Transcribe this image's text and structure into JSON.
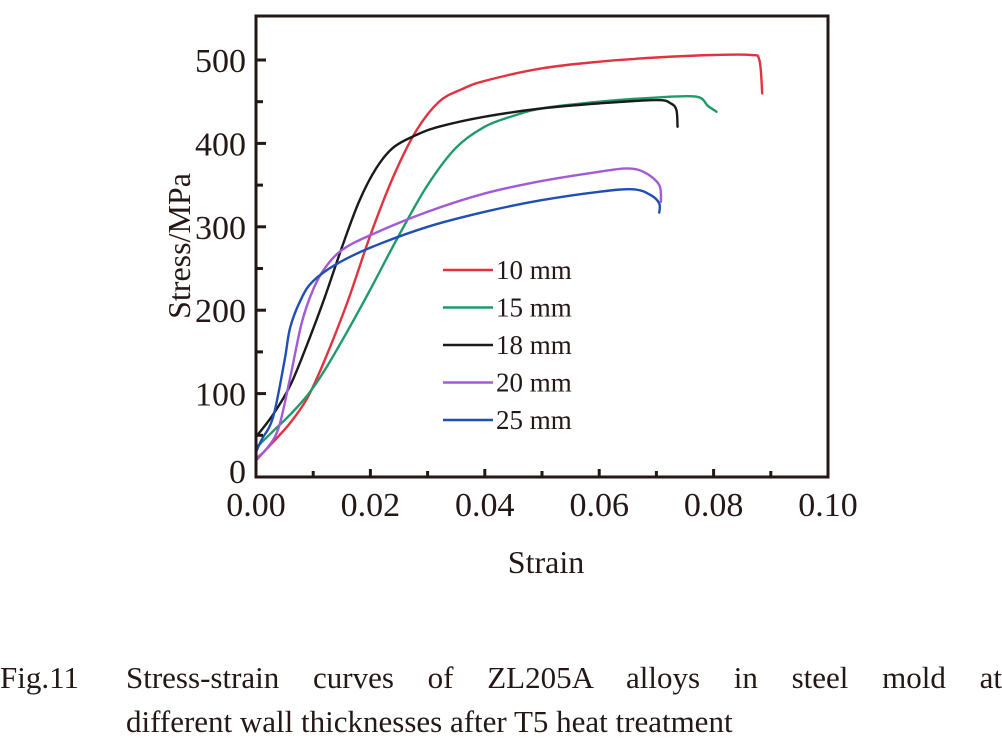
{
  "chart_data": {
    "type": "line",
    "title": "",
    "xlabel": "Strain",
    "ylabel": "Stress/MPa",
    "xlim": [
      0,
      0.1
    ],
    "ylim": [
      0,
      550
    ],
    "xticks": [
      0.0,
      0.02,
      0.04,
      0.06,
      0.08,
      0.1
    ],
    "xtick_labels": [
      "0.00",
      "0.02",
      "0.04",
      "0.06",
      "0.08",
      "0.10"
    ],
    "yticks": [
      0,
      100,
      200,
      300,
      400,
      500
    ],
    "ytick_labels": [
      "0",
      "100",
      "200",
      "300",
      "400",
      "500"
    ],
    "grid": false,
    "legend_position": "center",
    "series": [
      {
        "name": "10 mm",
        "color": "#e0323f",
        "points": [
          [
            0,
            20
          ],
          [
            0.003,
            42
          ],
          [
            0.006,
            65
          ],
          [
            0.009,
            95
          ],
          [
            0.012,
            140
          ],
          [
            0.016,
            210
          ],
          [
            0.02,
            290
          ],
          [
            0.024,
            360
          ],
          [
            0.028,
            415
          ],
          [
            0.032,
            450
          ],
          [
            0.036,
            465
          ],
          [
            0.04,
            475
          ],
          [
            0.05,
            490
          ],
          [
            0.06,
            498
          ],
          [
            0.07,
            503
          ],
          [
            0.08,
            506
          ],
          [
            0.0865,
            506
          ],
          [
            0.088,
            500
          ],
          [
            0.0885,
            460
          ]
        ]
      },
      {
        "name": "15 mm",
        "color": "#1f9a6a",
        "points": [
          [
            0,
            35
          ],
          [
            0.003,
            55
          ],
          [
            0.006,
            75
          ],
          [
            0.009,
            98
          ],
          [
            0.012,
            128
          ],
          [
            0.016,
            175
          ],
          [
            0.02,
            225
          ],
          [
            0.025,
            290
          ],
          [
            0.03,
            350
          ],
          [
            0.035,
            395
          ],
          [
            0.04,
            420
          ],
          [
            0.045,
            433
          ],
          [
            0.05,
            442
          ],
          [
            0.06,
            450
          ],
          [
            0.07,
            455
          ],
          [
            0.077,
            456
          ],
          [
            0.079,
            445
          ],
          [
            0.0805,
            438
          ]
        ]
      },
      {
        "name": "18 mm",
        "color": "#1a1a1a",
        "points": [
          [
            0,
            48
          ],
          [
            0.003,
            75
          ],
          [
            0.006,
            110
          ],
          [
            0.009,
            160
          ],
          [
            0.012,
            215
          ],
          [
            0.015,
            275
          ],
          [
            0.018,
            330
          ],
          [
            0.021,
            370
          ],
          [
            0.024,
            395
          ],
          [
            0.028,
            410
          ],
          [
            0.032,
            420
          ],
          [
            0.04,
            432
          ],
          [
            0.05,
            442
          ],
          [
            0.06,
            448
          ],
          [
            0.07,
            452
          ],
          [
            0.0725,
            448
          ],
          [
            0.0735,
            440
          ],
          [
            0.0737,
            420
          ]
        ]
      },
      {
        "name": "20 mm",
        "color": "#a25ad6",
        "points": [
          [
            0,
            22
          ],
          [
            0.002,
            35
          ],
          [
            0.004,
            60
          ],
          [
            0.006,
            120
          ],
          [
            0.008,
            185
          ],
          [
            0.01,
            225
          ],
          [
            0.012,
            250
          ],
          [
            0.015,
            272
          ],
          [
            0.02,
            290
          ],
          [
            0.03,
            318
          ],
          [
            0.04,
            340
          ],
          [
            0.05,
            355
          ],
          [
            0.06,
            366
          ],
          [
            0.065,
            370
          ],
          [
            0.068,
            365
          ],
          [
            0.0705,
            350
          ],
          [
            0.0708,
            330
          ]
        ]
      },
      {
        "name": "25 mm",
        "color": "#1f4fb5",
        "points": [
          [
            0,
            30
          ],
          [
            0.001,
            45
          ],
          [
            0.003,
            72
          ],
          [
            0.005,
            140
          ],
          [
            0.006,
            180
          ],
          [
            0.008,
            215
          ],
          [
            0.01,
            235
          ],
          [
            0.014,
            255
          ],
          [
            0.02,
            275
          ],
          [
            0.03,
            300
          ],
          [
            0.04,
            318
          ],
          [
            0.05,
            332
          ],
          [
            0.06,
            342
          ],
          [
            0.066,
            345
          ],
          [
            0.069,
            338
          ],
          [
            0.0705,
            328
          ],
          [
            0.0705,
            317
          ]
        ]
      }
    ]
  },
  "caption": {
    "figure_number": "Fig.11",
    "line1": "Stress-strain curves of ZL205A alloys in steel mold at",
    "line2": "different wall thicknesses after T5 heat treatment"
  }
}
